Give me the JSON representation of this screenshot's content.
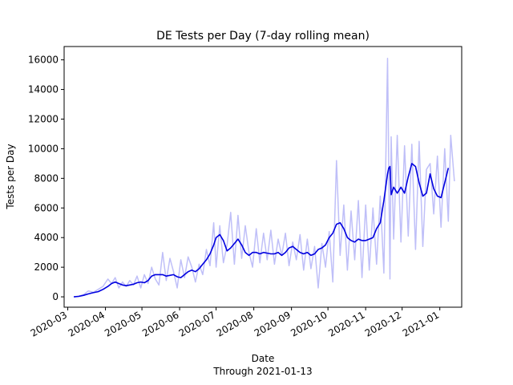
{
  "chart_data": {
    "type": "line",
    "title": "DE Tests per Day (7-day rolling mean)",
    "xlabel": "Date",
    "xlabel_sub": "Through 2021-01-13",
    "ylabel": "Tests per Day",
    "ylim": [
      -700,
      16900
    ],
    "xlim": [
      "2020-02-27",
      "2021-01-19"
    ],
    "y_ticks": [
      0,
      2000,
      4000,
      6000,
      8000,
      10000,
      12000,
      14000,
      16000
    ],
    "x_ticks": [
      "2020-03",
      "2020-04",
      "2020-05",
      "2020-06",
      "2020-07",
      "2020-08",
      "2020-09",
      "2020-10",
      "2020-11",
      "2020-12",
      "2021-01"
    ],
    "grid": false,
    "series": [
      {
        "role": "daily",
        "color": "#bfbff8",
        "x": [
          "2020-03-06",
          "2020-03-10",
          "2020-03-14",
          "2020-03-18",
          "2020-03-22",
          "2020-03-26",
          "2020-03-30",
          "2020-04-03",
          "2020-04-06",
          "2020-04-09",
          "2020-04-12",
          "2020-04-15",
          "2020-04-18",
          "2020-04-21",
          "2020-04-24",
          "2020-04-27",
          "2020-04-30",
          "2020-05-03",
          "2020-05-06",
          "2020-05-09",
          "2020-05-12",
          "2020-05-15",
          "2020-05-18",
          "2020-05-21",
          "2020-05-24",
          "2020-05-27",
          "2020-05-30",
          "2020-06-02",
          "2020-06-05",
          "2020-06-08",
          "2020-06-11",
          "2020-06-14",
          "2020-06-17",
          "2020-06-20",
          "2020-06-23",
          "2020-06-26",
          "2020-06-29",
          "2020-07-01",
          "2020-07-04",
          "2020-07-07",
          "2020-07-10",
          "2020-07-13",
          "2020-07-16",
          "2020-07-19",
          "2020-07-22",
          "2020-07-25",
          "2020-07-28",
          "2020-07-31",
          "2020-08-03",
          "2020-08-06",
          "2020-08-09",
          "2020-08-12",
          "2020-08-15",
          "2020-08-18",
          "2020-08-21",
          "2020-08-24",
          "2020-08-27",
          "2020-08-30",
          "2020-09-02",
          "2020-09-05",
          "2020-09-08",
          "2020-09-11",
          "2020-09-14",
          "2020-09-17",
          "2020-09-20",
          "2020-09-23",
          "2020-09-26",
          "2020-09-29",
          "2020-10-02",
          "2020-10-05",
          "2020-10-08",
          "2020-10-11",
          "2020-10-14",
          "2020-10-17",
          "2020-10-20",
          "2020-10-23",
          "2020-10-26",
          "2020-10-29",
          "2020-11-01",
          "2020-11-04",
          "2020-11-07",
          "2020-11-10",
          "2020-11-13",
          "2020-11-16",
          "2020-11-19",
          "2020-11-20",
          "2020-11-21",
          "2020-11-22",
          "2020-11-24",
          "2020-11-27",
          "2020-11-30",
          "2020-12-03",
          "2020-12-06",
          "2020-12-09",
          "2020-12-12",
          "2020-12-15",
          "2020-12-18",
          "2020-12-21",
          "2020-12-24",
          "2020-12-27",
          "2020-12-30",
          "2021-01-02",
          "2021-01-05",
          "2021-01-08",
          "2021-01-10",
          "2021-01-13"
        ],
        "values": [
          0,
          50,
          150,
          400,
          300,
          500,
          700,
          1200,
          900,
          1300,
          600,
          1000,
          700,
          1100,
          800,
          1400,
          600,
          1500,
          900,
          2000,
          1200,
          800,
          3000,
          1100,
          2600,
          1700,
          600,
          2500,
          1300,
          2700,
          2000,
          1000,
          2200,
          1500,
          3200,
          2100,
          5000,
          2000,
          4800,
          2300,
          3500,
          5700,
          2200,
          5500,
          2600,
          4800,
          3000,
          2000,
          4600,
          2300,
          4300,
          2500,
          4500,
          2200,
          3900,
          2800,
          4300,
          2100,
          3700,
          2500,
          4200,
          1800,
          3900,
          1900,
          3400,
          600,
          3600,
          2000,
          4400,
          1000,
          9200,
          2800,
          6200,
          1800,
          5800,
          2500,
          6500,
          1300,
          6200,
          1800,
          6000,
          2200,
          6800,
          1600,
          16100,
          8800,
          1200,
          10800,
          3900,
          10900,
          3700,
          10200,
          4100,
          10300,
          3200,
          10500,
          3400,
          8600,
          9000,
          5600,
          9500,
          4700,
          10000,
          5100,
          10900,
          7800
        ]
      },
      {
        "role": "rolling-mean",
        "color": "#0000e0",
        "x": [
          "2020-03-06",
          "2020-03-10",
          "2020-03-14",
          "2020-03-18",
          "2020-03-22",
          "2020-03-26",
          "2020-03-30",
          "2020-04-03",
          "2020-04-06",
          "2020-04-09",
          "2020-04-12",
          "2020-04-15",
          "2020-04-18",
          "2020-04-21",
          "2020-04-24",
          "2020-04-27",
          "2020-04-30",
          "2020-05-03",
          "2020-05-06",
          "2020-05-09",
          "2020-05-12",
          "2020-05-15",
          "2020-05-18",
          "2020-05-21",
          "2020-05-24",
          "2020-05-27",
          "2020-05-30",
          "2020-06-02",
          "2020-06-05",
          "2020-06-08",
          "2020-06-11",
          "2020-06-14",
          "2020-06-17",
          "2020-06-20",
          "2020-06-23",
          "2020-06-26",
          "2020-06-29",
          "2020-07-01",
          "2020-07-04",
          "2020-07-07",
          "2020-07-10",
          "2020-07-13",
          "2020-07-16",
          "2020-07-19",
          "2020-07-22",
          "2020-07-25",
          "2020-07-28",
          "2020-07-31",
          "2020-08-03",
          "2020-08-06",
          "2020-08-09",
          "2020-08-12",
          "2020-08-15",
          "2020-08-18",
          "2020-08-21",
          "2020-08-24",
          "2020-08-27",
          "2020-08-30",
          "2020-09-02",
          "2020-09-05",
          "2020-09-08",
          "2020-09-11",
          "2020-09-14",
          "2020-09-17",
          "2020-09-20",
          "2020-09-23",
          "2020-09-26",
          "2020-09-29",
          "2020-10-02",
          "2020-10-05",
          "2020-10-08",
          "2020-10-11",
          "2020-10-14",
          "2020-10-17",
          "2020-10-20",
          "2020-10-23",
          "2020-10-26",
          "2020-10-29",
          "2020-11-01",
          "2020-11-04",
          "2020-11-07",
          "2020-11-10",
          "2020-11-13",
          "2020-11-16",
          "2020-11-19",
          "2020-11-20",
          "2020-11-21",
          "2020-11-22",
          "2020-11-24",
          "2020-11-27",
          "2020-11-30",
          "2020-12-03",
          "2020-12-06",
          "2020-12-09",
          "2020-12-12",
          "2020-12-15",
          "2020-12-18",
          "2020-12-21",
          "2020-12-24",
          "2020-12-27",
          "2020-12-30",
          "2021-01-02",
          "2021-01-05",
          "2021-01-08"
        ],
        "values": [
          0,
          30,
          100,
          200,
          280,
          350,
          500,
          700,
          900,
          1000,
          900,
          800,
          750,
          800,
          850,
          950,
          1000,
          950,
          1100,
          1400,
          1500,
          1500,
          1500,
          1400,
          1450,
          1500,
          1350,
          1300,
          1500,
          1700,
          1800,
          1700,
          1900,
          2200,
          2500,
          2900,
          3500,
          4000,
          4200,
          3800,
          3100,
          3300,
          3600,
          3900,
          3500,
          3000,
          2800,
          3000,
          3000,
          2900,
          3000,
          2950,
          2900,
          2900,
          3000,
          2800,
          3000,
          3300,
          3400,
          3200,
          3000,
          2900,
          3000,
          2800,
          2900,
          3200,
          3300,
          3500,
          4000,
          4300,
          4900,
          5000,
          4600,
          4000,
          3800,
          3700,
          3900,
          3800,
          3800,
          3900,
          4000,
          4600,
          5000,
          6500,
          8300,
          8700,
          8800,
          6900,
          7400,
          7000,
          7400,
          7000,
          8100,
          9000,
          8800,
          7700,
          6800,
          7000,
          8300,
          7300,
          6800,
          6700,
          7700,
          8700
        ]
      }
    ]
  }
}
